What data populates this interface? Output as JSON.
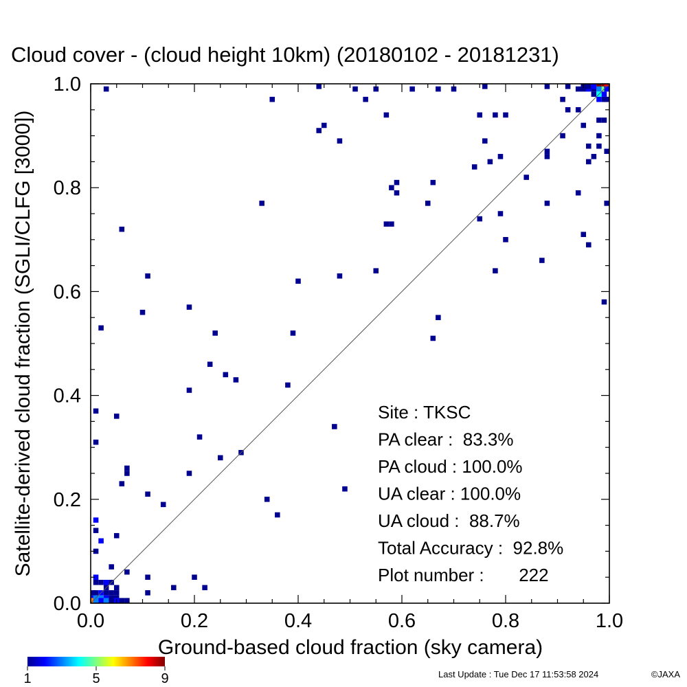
{
  "chart_data": {
    "type": "heatmap",
    "title": "Cloud cover - (cloud height 10km)  (20180102 - 20181231)",
    "xlabel": "Ground-based cloud fraction (sky camera)",
    "ylabel": "Satellite-derived cloud fraction (SGLI/CLFG [3000])",
    "xlim": [
      0.0,
      1.0
    ],
    "ylim": [
      0.0,
      1.0
    ],
    "x_ticks": [
      "0.0",
      "0.2",
      "0.4",
      "0.6",
      "0.8",
      "1.0"
    ],
    "y_ticks": [
      "0.0",
      "0.2",
      "0.4",
      "0.6",
      "0.8",
      "1.0"
    ],
    "reference_line": "y = x",
    "bin_size": 0.01,
    "colorbar": {
      "min": 1,
      "max": 9,
      "ticks": [
        "1",
        "5",
        "9"
      ],
      "colormap": "rainbow (blue to red)"
    },
    "stats": [
      {
        "label": "Site : TKSC"
      },
      {
        "label": "PA clear :  83.3%"
      },
      {
        "label": "PA cloud : 100.0%"
      },
      {
        "label": "UA clear : 100.0%"
      },
      {
        "label": "UA cloud :  88.7%"
      },
      {
        "label": "Total Accuracy :  92.8%"
      },
      {
        "label": "Plot number :       222"
      }
    ],
    "points": [
      [
        0.03,
        0.99,
        1
      ],
      [
        0.44,
        1.0,
        1
      ],
      [
        0.51,
        0.99,
        1
      ],
      [
        0.55,
        0.99,
        1
      ],
      [
        0.62,
        0.99,
        1
      ],
      [
        0.67,
        0.99,
        1
      ],
      [
        0.7,
        0.99,
        1
      ],
      [
        0.76,
        1.0,
        1
      ],
      [
        0.88,
        1.0,
        1
      ],
      [
        0.92,
        1.0,
        1
      ],
      [
        0.35,
        0.97,
        1
      ],
      [
        0.53,
        0.97,
        1
      ],
      [
        0.57,
        0.94,
        1
      ],
      [
        0.44,
        0.91,
        1
      ],
      [
        0.45,
        0.92,
        1
      ],
      [
        0.48,
        0.89,
        1
      ],
      [
        0.75,
        0.94,
        1
      ],
      [
        0.78,
        0.94,
        1
      ],
      [
        0.8,
        0.94,
        1
      ],
      [
        0.76,
        0.89,
        1
      ],
      [
        0.77,
        0.85,
        1
      ],
      [
        0.74,
        0.84,
        1
      ],
      [
        0.79,
        0.86,
        1
      ],
      [
        0.84,
        0.82,
        1
      ],
      [
        0.58,
        0.8,
        1
      ],
      [
        0.59,
        0.81,
        1
      ],
      [
        0.59,
        0.79,
        1
      ],
      [
        0.66,
        0.81,
        1
      ],
      [
        0.65,
        0.77,
        1
      ],
      [
        0.33,
        0.77,
        1
      ],
      [
        0.57,
        0.73,
        1
      ],
      [
        0.58,
        0.73,
        1
      ],
      [
        0.75,
        0.74,
        1
      ],
      [
        0.79,
        0.75,
        1
      ],
      [
        0.8,
        0.7,
        1
      ],
      [
        0.78,
        0.64,
        1
      ],
      [
        0.88,
        0.77,
        1
      ],
      [
        0.87,
        0.66,
        1
      ],
      [
        0.88,
        0.86,
        1
      ],
      [
        0.88,
        0.87,
        1
      ],
      [
        0.91,
        0.9,
        1
      ],
      [
        0.91,
        0.97,
        1
      ],
      [
        0.92,
        0.95,
        1
      ],
      [
        0.94,
        0.95,
        1
      ],
      [
        0.95,
        0.92,
        1
      ],
      [
        0.96,
        0.88,
        1
      ],
      [
        0.96,
        0.85,
        1
      ],
      [
        0.97,
        0.86,
        1
      ],
      [
        0.94,
        0.79,
        1
      ],
      [
        0.95,
        0.71,
        1
      ],
      [
        0.96,
        0.69,
        1
      ],
      [
        0.99,
        0.58,
        1
      ],
      [
        0.98,
        0.88,
        1
      ],
      [
        0.98,
        0.9,
        1
      ],
      [
        0.98,
        0.93,
        1
      ],
      [
        0.99,
        0.93,
        1
      ],
      [
        1.0,
        0.87,
        1
      ],
      [
        1.0,
        0.77,
        1
      ],
      [
        0.06,
        0.72,
        1
      ],
      [
        0.11,
        0.63,
        1
      ],
      [
        0.1,
        0.56,
        1
      ],
      [
        0.02,
        0.53,
        1
      ],
      [
        0.19,
        0.57,
        1
      ],
      [
        0.24,
        0.52,
        1
      ],
      [
        0.4,
        0.62,
        1
      ],
      [
        0.48,
        0.63,
        1
      ],
      [
        0.55,
        0.64,
        1
      ],
      [
        0.66,
        0.51,
        1
      ],
      [
        0.67,
        0.55,
        1
      ],
      [
        0.39,
        0.52,
        1
      ],
      [
        0.23,
        0.46,
        1
      ],
      [
        0.26,
        0.44,
        1
      ],
      [
        0.28,
        0.43,
        1
      ],
      [
        0.38,
        0.42,
        1
      ],
      [
        0.19,
        0.41,
        1
      ],
      [
        0.01,
        0.37,
        1
      ],
      [
        0.05,
        0.36,
        1
      ],
      [
        0.47,
        0.34,
        1
      ],
      [
        0.21,
        0.32,
        1
      ],
      [
        0.01,
        0.31,
        1
      ],
      [
        0.29,
        0.29,
        1
      ],
      [
        0.25,
        0.28,
        1
      ],
      [
        0.07,
        0.26,
        1
      ],
      [
        0.07,
        0.25,
        1
      ],
      [
        0.19,
        0.25,
        1
      ],
      [
        0.06,
        0.23,
        1
      ],
      [
        0.49,
        0.22,
        1
      ],
      [
        0.11,
        0.21,
        1
      ],
      [
        0.34,
        0.2,
        1
      ],
      [
        0.14,
        0.19,
        1
      ],
      [
        0.36,
        0.17,
        1
      ],
      [
        0.01,
        0.16,
        2
      ],
      [
        0.01,
        0.14,
        1
      ],
      [
        0.02,
        0.12,
        2
      ],
      [
        0.05,
        0.13,
        1
      ],
      [
        0.01,
        0.1,
        1
      ],
      [
        0.04,
        0.07,
        1
      ],
      [
        0.07,
        0.06,
        1
      ],
      [
        0.11,
        0.05,
        1
      ],
      [
        0.2,
        0.05,
        1
      ],
      [
        0.16,
        0.03,
        1
      ],
      [
        0.22,
        0.03,
        1
      ],
      [
        0.11,
        0.02,
        1
      ],
      [
        0.01,
        0.05,
        2
      ],
      [
        0.01,
        0.04,
        1
      ],
      [
        0.02,
        0.04,
        1
      ],
      [
        0.03,
        0.03,
        1
      ],
      [
        0.03,
        0.04,
        2
      ],
      [
        0.04,
        0.04,
        1
      ],
      [
        0.05,
        0.03,
        1
      ],
      [
        0.0,
        0.02,
        1
      ],
      [
        0.01,
        0.02,
        1
      ],
      [
        0.02,
        0.02,
        2
      ],
      [
        0.03,
        0.02,
        1
      ],
      [
        0.04,
        0.02,
        1
      ],
      [
        0.05,
        0.02,
        1
      ],
      [
        0.0,
        0.01,
        2
      ],
      [
        0.01,
        0.01,
        3
      ],
      [
        0.02,
        0.01,
        3
      ],
      [
        0.03,
        0.01,
        2
      ],
      [
        0.04,
        0.01,
        1
      ],
      [
        0.05,
        0.01,
        1
      ],
      [
        0.0,
        0.0,
        7
      ],
      [
        0.01,
        0.0,
        3
      ],
      [
        0.02,
        0.0,
        2
      ],
      [
        0.03,
        0.0,
        3
      ],
      [
        0.04,
        0.0,
        1
      ],
      [
        0.05,
        0.0,
        2
      ],
      [
        0.06,
        0.0,
        1
      ],
      [
        0.07,
        0.0,
        1
      ],
      [
        0.94,
        0.99,
        1
      ],
      [
        0.95,
        0.99,
        1
      ],
      [
        0.96,
        0.99,
        2
      ],
      [
        0.97,
        0.99,
        1
      ],
      [
        0.95,
        1.0,
        1
      ],
      [
        0.96,
        1.0,
        1
      ],
      [
        0.97,
        1.0,
        2
      ],
      [
        0.98,
        1.0,
        9
      ],
      [
        0.99,
        1.0,
        9
      ],
      [
        1.0,
        1.0,
        8
      ],
      [
        0.98,
        0.99,
        3
      ],
      [
        0.99,
        0.99,
        5
      ],
      [
        1.0,
        0.99,
        2
      ],
      [
        0.97,
        0.98,
        1
      ],
      [
        0.98,
        0.98,
        4
      ],
      [
        0.99,
        0.98,
        2
      ],
      [
        0.98,
        0.97,
        2
      ],
      [
        0.99,
        0.97,
        1
      ],
      [
        1.0,
        0.97,
        1
      ]
    ]
  },
  "footer": {
    "last_update": "Last Update : Tue Dec 17 11:53:58 2024",
    "copyright": "©JAXA"
  }
}
